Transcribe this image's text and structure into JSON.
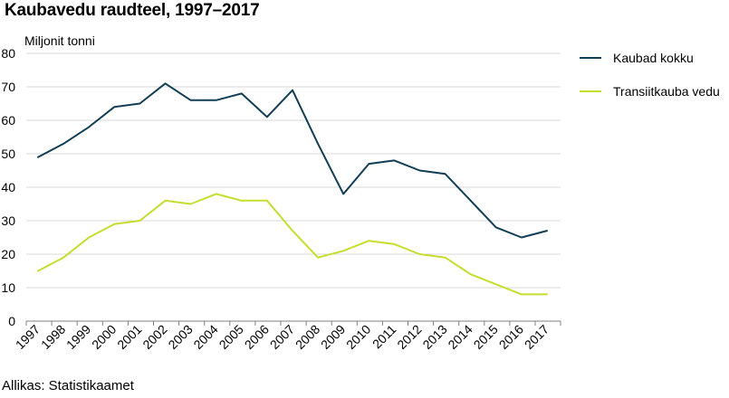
{
  "chart_data": {
    "type": "line",
    "title": "Kaubavedu raudteel, 1997–2017",
    "ylabel": "Miljonit tonni",
    "xlabel": "",
    "ylim": [
      0,
      80
    ],
    "yticks": [
      0,
      10,
      20,
      30,
      40,
      50,
      60,
      70,
      80
    ],
    "grid": true,
    "legend_position": "right",
    "categories": [
      "1997",
      "1998",
      "1999",
      "2000",
      "2001",
      "2002",
      "2003",
      "2004",
      "2005",
      "2006",
      "2007",
      "2008",
      "2009",
      "2010",
      "2011",
      "2012",
      "2013",
      "2014",
      "2015",
      "2016",
      "2017"
    ],
    "series": [
      {
        "name": "Kaubad kokku",
        "color": "#123e55",
        "values": [
          49,
          53,
          58,
          64,
          65,
          71,
          66,
          66,
          68,
          61,
          69,
          53,
          38,
          47,
          48,
          45,
          44,
          36,
          28,
          25,
          27
        ]
      },
      {
        "name": "Transiitkauba vedu",
        "color": "#c6dd2e",
        "values": [
          15,
          19,
          25,
          29,
          30,
          36,
          35,
          38,
          36,
          36,
          27,
          19,
          21,
          24,
          23,
          20,
          19,
          14,
          11,
          8,
          8
        ]
      }
    ]
  },
  "source": "Allikas: Statistikaamet"
}
